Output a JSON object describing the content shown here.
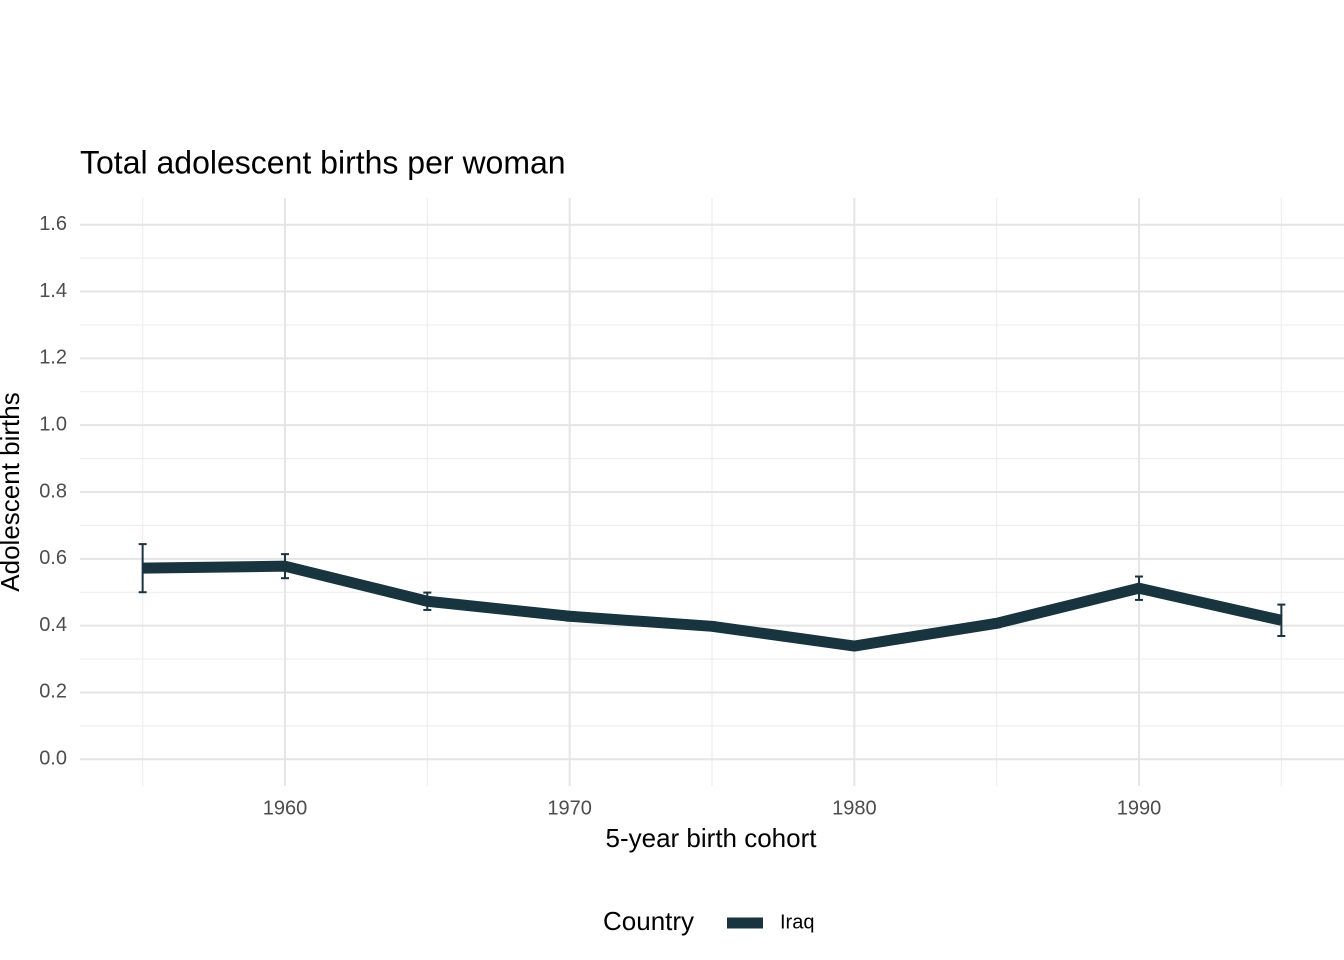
{
  "chart_data": {
    "type": "line",
    "title": "Total adolescent births per woman",
    "xlabel": "5-year birth cohort",
    "ylabel": "Adolescent births",
    "x": [
      1955,
      1960,
      1965,
      1970,
      1975,
      1980,
      1985,
      1990,
      1995
    ],
    "series": [
      {
        "name": "Iraq",
        "color": "#17343f",
        "values": [
          0.572,
          0.578,
          0.473,
          0.428,
          0.398,
          0.339,
          0.407,
          0.512,
          0.416
        ],
        "errors": [
          0.072,
          0.036,
          0.026,
          0.013,
          0.012,
          0.012,
          0.012,
          0.035,
          0.047
        ]
      }
    ],
    "legend_title": "Country",
    "legend": "bottom",
    "xlim": [
      1952.8,
      1997.2
    ],
    "xticks": [
      1960,
      1970,
      1980,
      1990
    ],
    "xminor": [
      1955,
      1965,
      1975,
      1985,
      1995
    ],
    "ylim": [
      -0.08,
      1.68
    ],
    "yticks": [
      {
        "value": 0,
        "label": "0.0"
      },
      {
        "value": 0.2,
        "label": "0.2"
      },
      {
        "value": 0.4,
        "label": "0.4"
      },
      {
        "value": 0.6,
        "label": "0.6"
      },
      {
        "value": 0.8,
        "label": "0.8"
      },
      {
        "value": 1,
        "label": "1.0"
      },
      {
        "value": 1.2,
        "label": "1.2"
      },
      {
        "value": 1.4,
        "label": "1.4"
      },
      {
        "value": 1.6,
        "label": "1.6"
      }
    ],
    "yminor": [
      0.1,
      0.3,
      0.5,
      0.7,
      0.9,
      1.1,
      1.3,
      1.5
    ],
    "grid": true
  }
}
